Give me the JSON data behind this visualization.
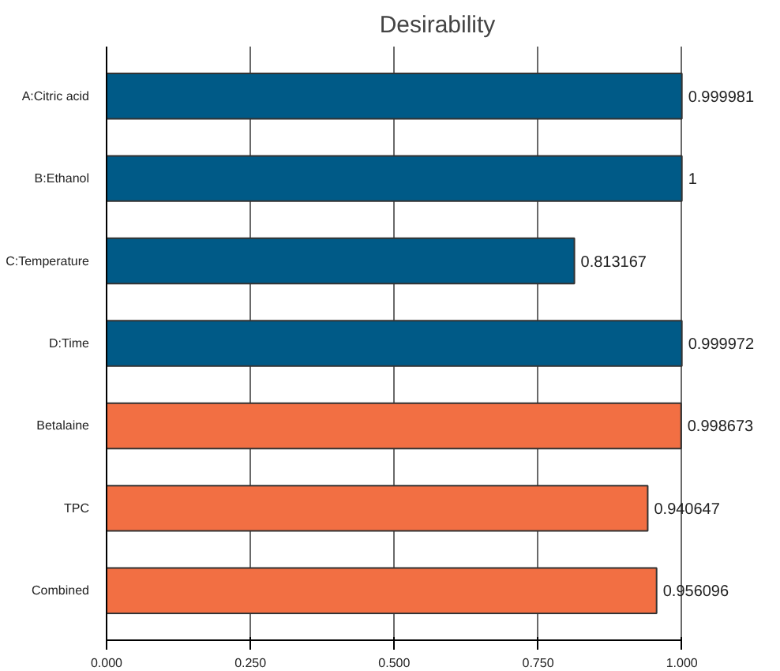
{
  "chart_data": {
    "type": "bar",
    "orientation": "horizontal",
    "title": "Desirability",
    "categories": [
      "A:Citric acid",
      "B:Ethanol",
      "C:Temperature",
      "D:Time",
      "Betalaine",
      "TPC",
      "Combined"
    ],
    "values": [
      0.999981,
      1,
      0.813167,
      0.999972,
      0.998673,
      0.940647,
      0.956096
    ],
    "colors": [
      "#005a87",
      "#005a87",
      "#005a87",
      "#005a87",
      "#f26f43",
      "#f26f43",
      "#f26f43"
    ],
    "xlim": [
      0,
      1
    ],
    "xticks": [
      {
        "value": 0,
        "label": "0.000"
      },
      {
        "value": 0.25,
        "label": "0.250"
      },
      {
        "value": 0.5,
        "label": "0.500"
      },
      {
        "value": 0.75,
        "label": "0.750"
      },
      {
        "value": 1,
        "label": "1.000"
      }
    ],
    "value_labels": [
      "0.999981",
      "1",
      "0.813167",
      "0.999972",
      "0.998673",
      "0.940647",
      "0.956096"
    ],
    "grid": "x"
  }
}
